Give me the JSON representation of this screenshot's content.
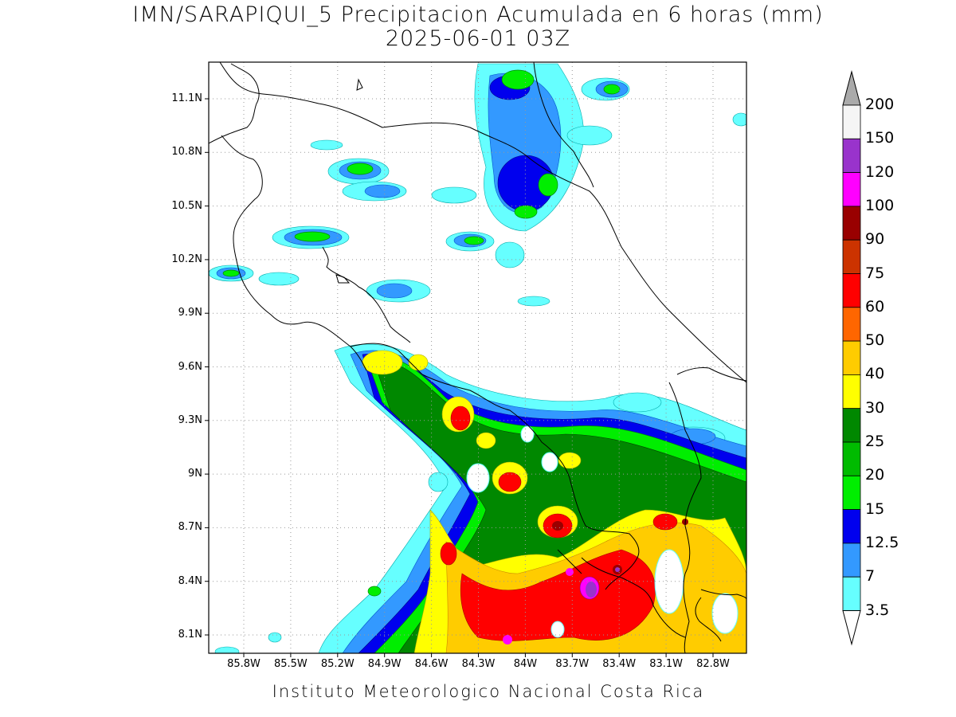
{
  "title": "IMN/SARAPIQUI_5 Precipitacion Acumulada en 6 horas (mm)",
  "subtitle": "2025-06-01 03Z",
  "footer": "Instituto Meteorologico Nacional Costa Rica",
  "map": {
    "lat_labels": [
      "11.1N",
      "10.8N",
      "10.5N",
      "10.2N",
      "9.9N",
      "9.6N",
      "9.3N",
      "9N",
      "8.7N",
      "8.4N",
      "8.1N"
    ],
    "lon_labels": [
      "85.8W",
      "85.5W",
      "85.2W",
      "84.9W",
      "84.6W",
      "84.3W",
      "84W",
      "83.7W",
      "83.4W",
      "83.1W",
      "82.8W"
    ],
    "lat_values": [
      11.1,
      10.8,
      10.5,
      10.2,
      9.9,
      9.6,
      9.3,
      9.0,
      8.7,
      8.4,
      8.1
    ],
    "lon_values": [
      -85.8,
      -85.5,
      -85.2,
      -84.9,
      -84.6,
      -84.3,
      -84.0,
      -83.7,
      -83.4,
      -83.1,
      -82.8
    ],
    "grid": true
  },
  "colorbar": {
    "labels": [
      "3.5",
      "7",
      "12.5",
      "15",
      "20",
      "25",
      "30",
      "40",
      "50",
      "60",
      "75",
      "90",
      "100",
      "120",
      "150",
      "200"
    ],
    "colors": [
      "#66ffff",
      "#3399ff",
      "#0000ee",
      "#00ee00",
      "#00bb00",
      "#008800",
      "#ffff00",
      "#ffcc00",
      "#ff6600",
      "#ff0000",
      "#cc3300",
      "#990000",
      "#ff00ff",
      "#9933cc",
      "#f5f5f5"
    ],
    "top_arrow_color": "#aaaaaa"
  }
}
